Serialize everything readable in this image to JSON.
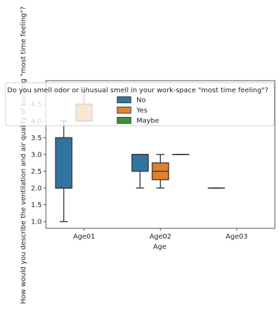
{
  "chart_data": {
    "type": "box",
    "xlabel": "Age",
    "ylabel": "How would you describe the ventilation and air quality of building \"most time feeling\"?",
    "categories": [
      "Age01",
      "Age02",
      "Age03"
    ],
    "ylim": [
      0.8,
      5.2
    ],
    "yticks": [
      1.0,
      1.5,
      2.0,
      2.5,
      3.0,
      3.5,
      4.0,
      4.5
    ],
    "grid": false,
    "legend": {
      "title": "Do you smell odor or unusual smell in your work-space \"most time feeling\"?",
      "placement": "upper center",
      "entries": [
        "No",
        "Yes",
        "Maybe"
      ]
    },
    "series": [
      {
        "name": "No",
        "color": "#3274a1",
        "boxes": [
          {
            "category": "Age01",
            "min": 1.0,
            "q1": 2.0,
            "median": 2.0,
            "q3": 3.5,
            "max": 4.0
          },
          {
            "category": "Age02",
            "min": 2.0,
            "q1": 2.5,
            "median": 3.0,
            "q3": 3.0,
            "max": 3.0
          },
          {
            "category": "Age03",
            "min": 2.0,
            "q1": 2.0,
            "median": 2.0,
            "q3": 2.0,
            "max": 2.0
          }
        ]
      },
      {
        "name": "Yes",
        "color": "#e1812c",
        "boxes": [
          {
            "category": "Age01",
            "min": 4.0,
            "q1": 4.0,
            "median": 4.0,
            "q3": 4.5,
            "max": 5.0
          },
          {
            "category": "Age02",
            "min": 2.0,
            "q1": 2.25,
            "median": 2.5,
            "q3": 2.75,
            "max": 3.0
          }
        ]
      },
      {
        "name": "Maybe",
        "color": "#3a923a",
        "boxes": [
          {
            "category": "Age02",
            "min": 3.0,
            "q1": 3.0,
            "median": 3.0,
            "q3": 3.0,
            "max": 3.0
          }
        ]
      }
    ]
  }
}
